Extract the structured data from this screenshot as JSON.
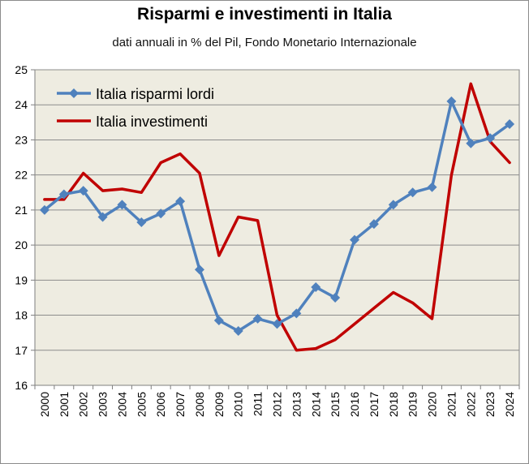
{
  "chart_data": {
    "type": "line",
    "title": "Risparmi e investimenti in Italia",
    "subtitle": "dati annuali in % del Pil, Fondo Monetario Internazionale",
    "xlabel": "",
    "ylabel": "",
    "categories": [
      "2000",
      "2001",
      "2002",
      "2003",
      "2004",
      "2005",
      "2006",
      "2007",
      "2008",
      "2009",
      "2010",
      "2011",
      "2012",
      "2013",
      "2014",
      "2015",
      "2016",
      "2017",
      "2018",
      "2019",
      "2020",
      "2021",
      "2022",
      "2023",
      "2024"
    ],
    "ylim": [
      16,
      25
    ],
    "yticks": [
      16,
      17,
      18,
      19,
      20,
      21,
      22,
      23,
      24,
      25
    ],
    "grid": true,
    "legend_position": "top-left",
    "series": [
      {
        "name": "Italia risparmi lordi",
        "color": "#4f81bd",
        "marker": "diamond",
        "values": [
          21.0,
          21.45,
          21.55,
          20.8,
          21.15,
          20.65,
          20.9,
          21.25,
          19.3,
          17.85,
          17.55,
          17.9,
          17.75,
          18.05,
          18.8,
          18.5,
          20.15,
          20.6,
          21.15,
          21.5,
          21.65,
          24.1,
          22.9,
          23.05,
          23.45
        ]
      },
      {
        "name": "Italia investimenti",
        "color": "#c00000",
        "marker": "none",
        "values": [
          21.3,
          21.3,
          22.05,
          21.55,
          21.6,
          21.5,
          22.35,
          22.6,
          22.05,
          19.7,
          20.8,
          20.7,
          18.0,
          17.0,
          17.05,
          17.3,
          17.75,
          18.2,
          18.65,
          18.35,
          17.9,
          22.0,
          24.6,
          22.95,
          22.35
        ]
      }
    ]
  }
}
